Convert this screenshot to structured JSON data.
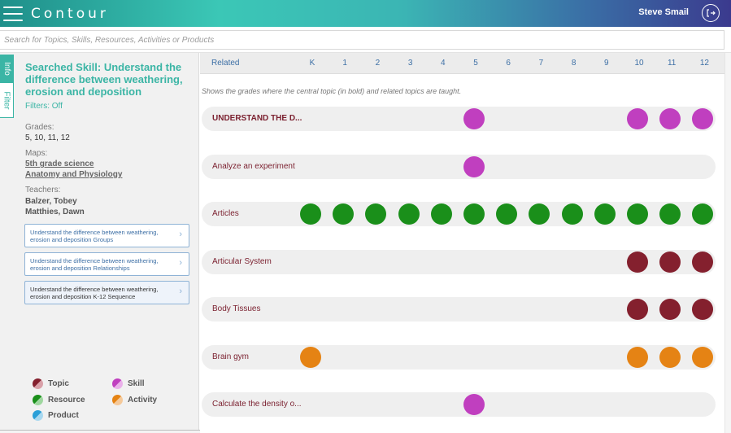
{
  "header": {
    "brand": "Contour",
    "user_name": "Steve Smail",
    "logout_icon": "logout-icon"
  },
  "search": {
    "placeholder": "Search for Topics, Skills, Resources, Activities or Products"
  },
  "sidebar": {
    "tabs": [
      {
        "label": "Info",
        "active": true
      },
      {
        "label": "Filter",
        "active": false
      }
    ],
    "skill_title": "Searched Skill: Understand the difference between weathering, erosion and deposition",
    "filters": "Filters: Off",
    "grades_label": "Grades:",
    "grades_value": "5, 10, 11, 12",
    "maps_label": "Maps:",
    "maps": [
      "5th grade science",
      "Anatomy and Physiology"
    ],
    "teachers_label": "Teachers:",
    "teachers": [
      "Balzer, Tobey",
      "Matthies, Dawn"
    ],
    "buttons": [
      {
        "label": "Understand the difference between weathering, erosion and deposition Groups"
      },
      {
        "label": "Understand the difference between weathering, erosion and deposition Relationships"
      },
      {
        "label": "Understand the difference between weathering, erosion and deposition K-12 Sequence"
      }
    ]
  },
  "legend": [
    {
      "label": "Topic",
      "color": "#84202e"
    },
    {
      "label": "Skill",
      "color": "#c03fbf"
    },
    {
      "label": "Resource",
      "color": "#1a8f1a"
    },
    {
      "label": "Activity",
      "color": "#e58314"
    },
    {
      "label": "Product",
      "color": "#2a9fd8"
    }
  ],
  "grid": {
    "related_label": "Related",
    "grades": [
      "K",
      "1",
      "2",
      "3",
      "4",
      "5",
      "6",
      "7",
      "8",
      "9",
      "10",
      "11",
      "12"
    ],
    "subtitle": "Shows the grades where the central topic (in bold) and related topics are taught.",
    "rows": [
      {
        "label": "UNDERSTAND THE D...",
        "central": true,
        "type": "skill",
        "grades": [
          "5",
          "10",
          "11",
          "12"
        ]
      },
      {
        "label": "Analyze an experiment",
        "central": false,
        "type": "skill",
        "grades": [
          "5"
        ]
      },
      {
        "label": "Articles",
        "central": false,
        "type": "resource",
        "grades": [
          "K",
          "1",
          "2",
          "3",
          "4",
          "5",
          "6",
          "7",
          "8",
          "9",
          "10",
          "11",
          "12"
        ]
      },
      {
        "label": "Articular System",
        "central": false,
        "type": "topic",
        "grades": [
          "10",
          "11",
          "12"
        ]
      },
      {
        "label": "Body Tissues",
        "central": false,
        "type": "topic",
        "grades": [
          "10",
          "11",
          "12"
        ]
      },
      {
        "label": "Brain gym",
        "central": false,
        "type": "activity",
        "grades": [
          "K",
          "10",
          "11",
          "12"
        ]
      },
      {
        "label": "Calculate the density o...",
        "central": false,
        "type": "skill",
        "grades": [
          "5"
        ]
      }
    ]
  }
}
